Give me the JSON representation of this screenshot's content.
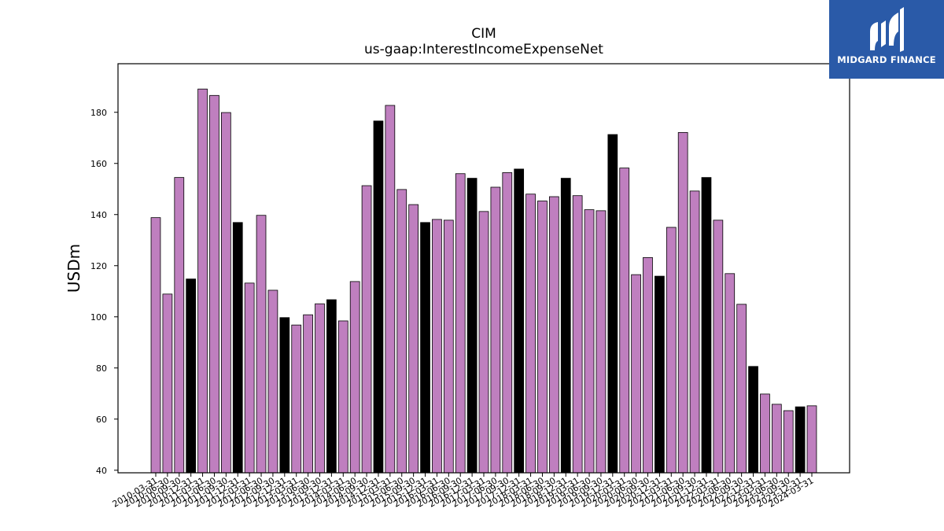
{
  "logo": {
    "text": "MIDGARD FINANCE",
    "background": "#2a5aa8"
  },
  "chart_data": {
    "type": "bar",
    "title": "CIM",
    "subtitle": "us-gaap:InterestIncomeExpenseNet",
    "xlabel": "",
    "ylabel": "USDm",
    "ylim": [
      39,
      199
    ],
    "yticks": [
      40,
      60,
      80,
      100,
      120,
      140,
      160,
      180
    ],
    "grid": false,
    "colors": {
      "quarter": "#bf7fbf",
      "annual": "#000000",
      "edge": "#000000"
    },
    "categories": [
      "2010-03-31",
      "2010-06-30",
      "2010-09-30",
      "2010-12-31",
      "2011-03-31",
      "2011-06-30",
      "2011-09-30",
      "2011-12-31",
      "2012-03-31",
      "2012-06-30",
      "2012-09-30",
      "2012-12-31",
      "2013-03-31",
      "2013-06-30",
      "2013-09-30",
      "2013-12-31",
      "2014-03-31",
      "2014-06-30",
      "2014-09-30",
      "2014-12-31",
      "2015-03-31",
      "2015-06-30",
      "2015-09-30",
      "2015-12-31",
      "2016-03-31",
      "2016-06-30",
      "2016-09-30",
      "2016-12-31",
      "2017-03-31",
      "2017-06-30",
      "2017-09-30",
      "2017-12-31",
      "2018-03-31",
      "2018-06-30",
      "2018-09-30",
      "2018-12-31",
      "2019-03-31",
      "2019-06-30",
      "2019-09-30",
      "2019-12-31",
      "2020-03-31",
      "2020-06-30",
      "2020-09-30",
      "2020-12-31",
      "2021-03-31",
      "2021-06-30",
      "2021-09-30",
      "2021-12-31",
      "2022-03-31",
      "2022-06-30",
      "2022-09-30",
      "2022-12-31",
      "2023-03-31",
      "2023-06-30",
      "2023-09-30",
      "2023-12-31",
      "2024-03-31"
    ],
    "values": [
      138.8,
      108.9,
      154.5,
      114.8,
      189.1,
      186.6,
      179.9,
      136.9,
      113.2,
      139.7,
      110.4,
      99.7,
      96.8,
      100.8,
      105.1,
      106.7,
      98.4,
      113.8,
      151.3,
      176.6,
      182.7,
      149.8,
      143.9,
      136.9,
      138.1,
      137.8,
      156.0,
      154.2,
      141.2,
      150.7,
      156.4,
      157.8,
      148.0,
      145.3,
      147.0,
      154.2,
      147.4,
      141.9,
      141.5,
      171.3,
      158.2,
      116.5,
      123.2,
      115.9,
      135.0,
      172.1,
      149.2,
      154.5,
      137.8,
      116.9,
      104.9,
      80.6,
      69.8,
      65.8,
      63.3,
      64.8,
      65.2
    ],
    "annual": [
      false,
      false,
      false,
      true,
      false,
      false,
      false,
      true,
      false,
      false,
      false,
      true,
      false,
      false,
      false,
      true,
      false,
      false,
      false,
      true,
      false,
      false,
      false,
      true,
      false,
      false,
      false,
      true,
      false,
      false,
      false,
      true,
      false,
      false,
      false,
      true,
      false,
      false,
      false,
      true,
      false,
      false,
      false,
      true,
      false,
      false,
      false,
      true,
      false,
      false,
      false,
      true,
      false,
      false,
      false,
      true,
      false
    ]
  }
}
